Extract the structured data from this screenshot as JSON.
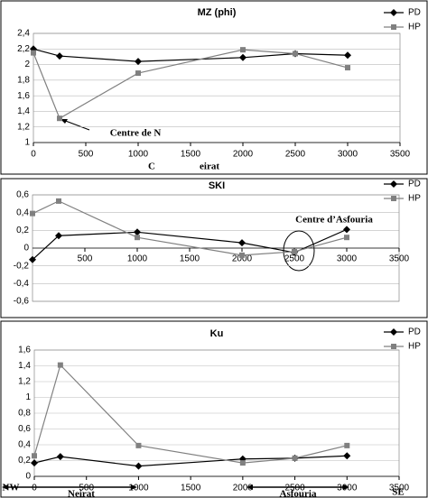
{
  "chart_data": [
    {
      "type": "line",
      "title": "MZ (phi)",
      "x": [
        0,
        250,
        1000,
        2000,
        2500,
        3000
      ],
      "series": [
        {
          "name": "PD",
          "color": "#000000",
          "marker": "diamond",
          "values": [
            2.2,
            2.11,
            2.04,
            2.09,
            2.14,
            2.12
          ]
        },
        {
          "name": "HP",
          "color": "#808080",
          "marker": "square",
          "values": [
            2.15,
            1.31,
            1.89,
            2.19,
            2.14,
            1.96
          ]
        }
      ],
      "xlim": [
        0,
        3500
      ],
      "xticks": [
        0,
        500,
        1000,
        1500,
        2000,
        2500,
        3000,
        3500
      ],
      "ylim": [
        1,
        2.4
      ],
      "yticks": [
        1,
        {
          "value": 1.2,
          "label": "1,2"
        },
        {
          "value": 1.4,
          "label": "1,4"
        },
        {
          "value": 1.6,
          "label": "1,6"
        },
        {
          "value": 1.8,
          "label": "1,8"
        },
        2,
        {
          "value": 2.2,
          "label": "2,2"
        },
        {
          "value": 2.4,
          "label": "2,4"
        }
      ],
      "grid": true,
      "legend": "top-right",
      "annotations": [
        "Centre de N",
        "C",
        "eirat"
      ]
    },
    {
      "type": "line",
      "title": "SKI",
      "x": [
        0,
        250,
        1000,
        2000,
        2500,
        3000
      ],
      "series": [
        {
          "name": "PD",
          "color": "#000000",
          "marker": "diamond",
          "values": [
            -0.13,
            0.14,
            0.18,
            0.06,
            -0.05,
            0.21
          ]
        },
        {
          "name": "HP",
          "color": "#808080",
          "marker": "square",
          "values": [
            0.39,
            0.53,
            0.12,
            -0.08,
            -0.04,
            0.12
          ]
        }
      ],
      "xlim": [
        0,
        3500
      ],
      "xticks": [
        500,
        1000,
        1500,
        2000,
        2500,
        3000,
        3500
      ],
      "ylim": [
        -0.6,
        0.6
      ],
      "yticks": [
        {
          "value": -0.6,
          "label": "-0,6"
        },
        {
          "value": -0.4,
          "label": "-0,4"
        },
        {
          "value": -0.2,
          "label": "-0,2"
        },
        0,
        {
          "value": 0.2,
          "label": "0,2"
        },
        {
          "value": 0.4,
          "label": "0,4"
        },
        {
          "value": 0.6,
          "label": "0,6"
        }
      ],
      "grid": true,
      "legend": "top-right",
      "annotations": [
        "Centre d’Asfouria"
      ]
    },
    {
      "type": "line",
      "title": "Ku",
      "x": [
        0,
        250,
        1000,
        2000,
        2500,
        3000
      ],
      "series": [
        {
          "name": "PD",
          "color": "#000000",
          "marker": "diamond",
          "values": [
            0.17,
            0.25,
            0.13,
            0.22,
            0.23,
            0.26
          ]
        },
        {
          "name": "HP",
          "color": "#808080",
          "marker": "square",
          "values": [
            0.26,
            1.41,
            0.39,
            0.17,
            0.23,
            0.39
          ]
        }
      ],
      "xlim": [
        0,
        3500
      ],
      "xticks": [
        0,
        500,
        1000,
        1500,
        2000,
        2500,
        3000,
        3500
      ],
      "ylim": [
        0,
        1.6
      ],
      "yticks": [
        0,
        {
          "value": 0.2,
          "label": "0,2"
        },
        {
          "value": 0.4,
          "label": "0,4"
        },
        {
          "value": 0.6,
          "label": "0,6"
        },
        {
          "value": 0.8,
          "label": "0,8"
        },
        1,
        {
          "value": 1.2,
          "label": "1,2"
        },
        {
          "value": 1.4,
          "label": "1,4"
        },
        {
          "value": 1.6,
          "label": "1,6"
        }
      ],
      "grid": true,
      "legend": "top-right",
      "annotations": [
        "NW",
        "Neirat",
        "Asfouria",
        "SE"
      ]
    }
  ]
}
